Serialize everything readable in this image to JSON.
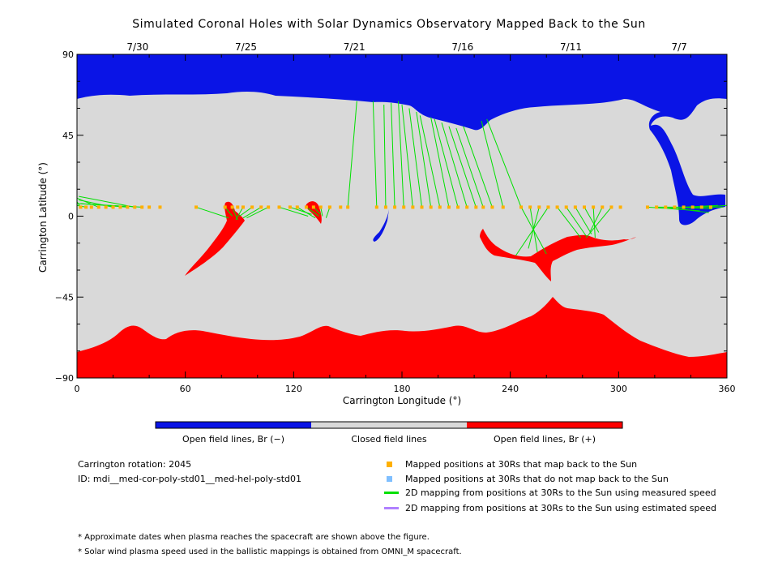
{
  "chart_data": {
    "type": "scatter",
    "title": "Simulated Coronal Holes with Solar Dynamics Observatory Mapped Back to the Sun",
    "xlabel": "Carrington Longitude (°)",
    "ylabel": "Carrington Latitude (°)",
    "xlim": [
      0,
      360
    ],
    "ylim": [
      -90,
      90
    ],
    "x_ticks": [
      "0",
      "60",
      "120",
      "180",
      "240",
      "300",
      "360"
    ],
    "y_ticks": [
      "90",
      "45",
      "0",
      "-45",
      "-90"
    ],
    "date_ticks": [
      {
        "label": "7/30",
        "lon": 30
      },
      {
        "label": "7/25",
        "lon": 90
      },
      {
        "label": "7/21",
        "lon": 150
      },
      {
        "label": "7/16",
        "lon": 210
      },
      {
        "label": "7/11",
        "lon": 270
      },
      {
        "label": "7/7",
        "lon": 330
      }
    ],
    "colors": {
      "open_negative": "#0a14e6",
      "closed": "#d9d9d9",
      "open_positive": "#ff0000",
      "mapped": "#ffb000",
      "unmapped": "#7fbfff",
      "measured_line": "#00e000",
      "estimated_line": "#b080ff"
    },
    "colorbar": [
      {
        "label": "Open field lines, Br (−)",
        "color": "#0a14e6"
      },
      {
        "label": "Closed field lines",
        "color": "#d9d9d9"
      },
      {
        "label": "Open field lines, Br (+)",
        "color": "#ff0000"
      }
    ],
    "mapped_points": {
      "latitude": 5,
      "longitudes": [
        2,
        5,
        8,
        12,
        16,
        20,
        24,
        28,
        32,
        36,
        40,
        46,
        66,
        82,
        86,
        89,
        92,
        97,
        102,
        106,
        112,
        118,
        122,
        127,
        131,
        135,
        140,
        146,
        150,
        166,
        171,
        176,
        181,
        186,
        191,
        196,
        201,
        206,
        211,
        216,
        221,
        225,
        230,
        236,
        246,
        251,
        256,
        261,
        266,
        271,
        276,
        281,
        286,
        291,
        296,
        301,
        316,
        321,
        326,
        331,
        336,
        341,
        346,
        351
      ]
    },
    "mapping_lines": [
      {
        "start": [
          2,
          5
        ],
        "end": [
          0,
          8
        ]
      },
      {
        "start": [
          5,
          5
        ],
        "end": [
          0,
          6
        ]
      },
      {
        "start": [
          12,
          5
        ],
        "end": [
          0,
          10
        ]
      },
      {
        "start": [
          20,
          5
        ],
        "end": [
          1,
          9
        ]
      },
      {
        "start": [
          28,
          5
        ],
        "end": [
          2,
          7
        ]
      },
      {
        "start": [
          32,
          5
        ],
        "end": [
          1,
          11
        ]
      },
      {
        "start": [
          36,
          5
        ],
        "end": [
          0,
          7
        ]
      },
      {
        "start": [
          66,
          5
        ],
        "end": [
          84,
          -1
        ]
      },
      {
        "start": [
          82,
          5
        ],
        "end": [
          86,
          0
        ]
      },
      {
        "start": [
          86,
          5
        ],
        "end": [
          89,
          -2
        ]
      },
      {
        "start": [
          92,
          5
        ],
        "end": [
          88,
          -2
        ]
      },
      {
        "start": [
          97,
          5
        ],
        "end": [
          90,
          0
        ]
      },
      {
        "start": [
          102,
          5
        ],
        "end": [
          92,
          -1
        ]
      },
      {
        "start": [
          106,
          5
        ],
        "end": [
          94,
          -1
        ]
      },
      {
        "start": [
          112,
          5
        ],
        "end": [
          128,
          0
        ]
      },
      {
        "start": [
          118,
          5
        ],
        "end": [
          130,
          1
        ]
      },
      {
        "start": [
          122,
          5
        ],
        "end": [
          132,
          -1
        ]
      },
      {
        "start": [
          127,
          5
        ],
        "end": [
          134,
          0
        ]
      },
      {
        "start": [
          131,
          5
        ],
        "end": [
          135,
          1
        ]
      },
      {
        "start": [
          135,
          5
        ],
        "end": [
          136,
          0
        ]
      },
      {
        "start": [
          140,
          5
        ],
        "end": [
          138,
          -1
        ]
      },
      {
        "start": [
          150,
          5
        ],
        "end": [
          155,
          64
        ]
      },
      {
        "start": [
          166,
          5
        ],
        "end": [
          164,
          64
        ]
      },
      {
        "start": [
          171,
          5
        ],
        "end": [
          170,
          62
        ]
      },
      {
        "start": [
          176,
          5
        ],
        "end": [
          174,
          63
        ]
      },
      {
        "start": [
          181,
          5
        ],
        "end": [
          178,
          64
        ]
      },
      {
        "start": [
          186,
          5
        ],
        "end": [
          180,
          62
        ]
      },
      {
        "start": [
          191,
          5
        ],
        "end": [
          184,
          60
        ]
      },
      {
        "start": [
          196,
          5
        ],
        "end": [
          188,
          58
        ]
      },
      {
        "start": [
          201,
          5
        ],
        "end": [
          190,
          56
        ]
      },
      {
        "start": [
          206,
          5
        ],
        "end": [
          196,
          55
        ]
      },
      {
        "start": [
          211,
          5
        ],
        "end": [
          198,
          54
        ]
      },
      {
        "start": [
          216,
          5
        ],
        "end": [
          202,
          52
        ]
      },
      {
        "start": [
          221,
          5
        ],
        "end": [
          206,
          50
        ]
      },
      {
        "start": [
          225,
          5
        ],
        "end": [
          210,
          49
        ]
      },
      {
        "start": [
          230,
          5
        ],
        "end": [
          214,
          50
        ]
      },
      {
        "start": [
          236,
          5
        ],
        "end": [
          224,
          53
        ]
      },
      {
        "start": [
          246,
          5
        ],
        "end": [
          227,
          54
        ]
      },
      {
        "start": [
          246,
          5
        ],
        "end": [
          260,
          -21
        ]
      },
      {
        "start": [
          251,
          5
        ],
        "end": [
          255,
          -20
        ]
      },
      {
        "start": [
          256,
          5
        ],
        "end": [
          250,
          -18
        ]
      },
      {
        "start": [
          261,
          5
        ],
        "end": [
          243,
          -22
        ]
      },
      {
        "start": [
          266,
          5
        ],
        "end": [
          279,
          -12
        ]
      },
      {
        "start": [
          271,
          5
        ],
        "end": [
          282,
          -11
        ]
      },
      {
        "start": [
          276,
          5
        ],
        "end": [
          285,
          -10
        ]
      },
      {
        "start": [
          281,
          5
        ],
        "end": [
          289,
          -9
        ]
      },
      {
        "start": [
          286,
          5
        ],
        "end": [
          287,
          -12
        ]
      },
      {
        "start": [
          291,
          5
        ],
        "end": [
          284,
          -9
        ]
      },
      {
        "start": [
          296,
          5
        ],
        "end": [
          282,
          -12
        ]
      },
      {
        "start": [
          316,
          5
        ],
        "end": [
          345,
          3
        ]
      },
      {
        "start": [
          321,
          5
        ],
        "end": [
          348,
          5
        ]
      },
      {
        "start": [
          326,
          5
        ],
        "end": [
          350,
          2
        ]
      },
      {
        "start": [
          331,
          5
        ],
        "end": [
          352,
          4
        ]
      },
      {
        "start": [
          336,
          5
        ],
        "end": [
          355,
          6
        ]
      },
      {
        "start": [
          341,
          5
        ],
        "end": [
          358,
          5
        ]
      },
      {
        "start": [
          346,
          5
        ],
        "end": [
          360,
          6
        ]
      }
    ],
    "legend": [
      {
        "label": "Mapped positions at 30Rs that map back to the Sun",
        "kind": "square",
        "color": "#ffb000"
      },
      {
        "label": "Mapped positions at 30Rs that do not map back to the Sun",
        "kind": "square",
        "color": "#7fbfff"
      },
      {
        "label": "2D mapping from positions at 30Rs to the Sun using measured speed",
        "kind": "line",
        "color": "#00e000"
      },
      {
        "label": "2D mapping from positions at 30Rs to the Sun using estimated speed",
        "kind": "line",
        "color": "#b080ff"
      }
    ],
    "info": {
      "rotation": "Carrington rotation: 2045",
      "id": "ID: mdi__med-cor-poly-std01__med-hel-poly-std01"
    },
    "footnotes": [
      "* Approximate dates when plasma reaches the spacecraft are shown above the figure.",
      "* Solar wind plasma speed used in the ballistic mappings is obtained from OMNI_M spacecraft."
    ]
  }
}
